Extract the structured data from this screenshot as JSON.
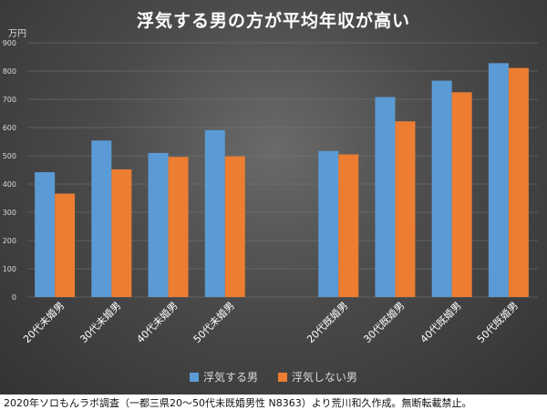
{
  "chart_data": {
    "type": "bar",
    "title": "浮気する男の方が平均年収が高い",
    "unit": "万円",
    "categories": [
      "20代未婚男",
      "30代未婚男",
      "40代未婚男",
      "50代未婚男",
      "20代既婚男",
      "30代既婚男",
      "40代既婚男",
      "50代既婚男"
    ],
    "series": [
      {
        "name": "浮気する男",
        "color": "#5b9bd5",
        "values": [
          442,
          554,
          510,
          591,
          517,
          708,
          766,
          828
        ]
      },
      {
        "name": "浮気しない男",
        "color": "#ed7d31",
        "values": [
          366,
          452,
          496,
          498,
          505,
          622,
          725,
          811
        ]
      }
    ],
    "ylim": [
      0,
      900
    ],
    "yticks": [
      0,
      100,
      200,
      300,
      400,
      500,
      600,
      700,
      800,
      900
    ],
    "grid": true,
    "legend_position": "bottom"
  },
  "footer": "2020年ソロもんラボ調査（一都三県20〜50代未既婚男性 N8363）より荒川和久作成。無断転載禁止。"
}
